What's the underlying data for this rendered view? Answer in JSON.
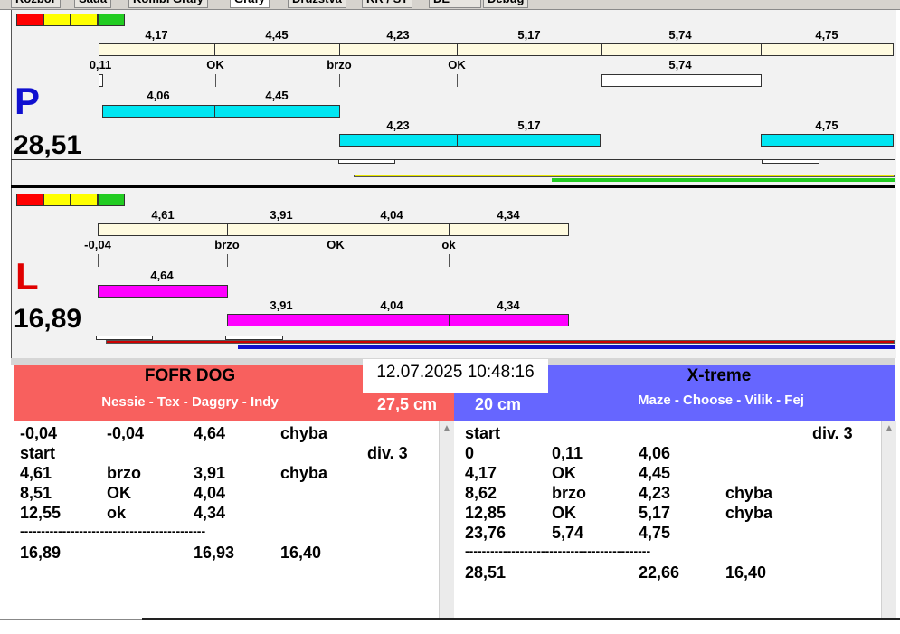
{
  "tabs": [
    {
      "label": "Rozbor"
    },
    {
      "label": "Sada"
    },
    {
      "label": "Kombi Grafy"
    },
    {
      "label": "Grafy"
    },
    {
      "label": "Družstva"
    },
    {
      "label": "KR / ST"
    },
    {
      "label": "DE"
    },
    {
      "label": "Debug"
    }
  ],
  "signal_colors": [
    "#ff0000",
    "#ffff00",
    "#ffff00",
    "#22cc22"
  ],
  "lane_p": {
    "letter": "P",
    "letter_color": "#1010d0",
    "total": "28,51",
    "ref_labels": [
      "4,17",
      "4,45",
      "4,23",
      "5,17",
      "5,74",
      "4,75"
    ],
    "pass_labels": [
      "0,11",
      "OK",
      "brzo",
      "OK",
      "5,74"
    ],
    "cyan_top_labels": [
      "4,06",
      "4,45"
    ],
    "cyan_bottom_labels": [
      "4,23",
      "5,17",
      "4,75"
    ]
  },
  "lane_l": {
    "letter": "L",
    "letter_color": "#e00000",
    "total": "16,89",
    "ref_labels": [
      "4,61",
      "3,91",
      "4,04",
      "4,34"
    ],
    "pass_labels": [
      "-0,04",
      "brzo",
      "OK",
      "ok"
    ],
    "mag_top_labels": [
      "4,64"
    ],
    "mag_bottom_labels": [
      "3,91",
      "4,04",
      "4,34"
    ]
  },
  "clock": "12.07.2025 10:48:16",
  "left_team": {
    "name": "FOFR DOG",
    "members": "Nessie - Tex - Daggry - Indy",
    "height": "27,5 cm",
    "color": "#f8605e",
    "rows": [
      [
        "-0,04",
        "-0,04",
        "4,64",
        "chyba",
        ""
      ],
      [
        "start",
        "",
        "",
        "",
        "div.  3"
      ],
      [
        "4,61",
        "brzo",
        "3,91",
        "chyba",
        ""
      ],
      [
        "8,51",
        "OK",
        "4,04",
        "",
        ""
      ],
      [
        "12,55",
        "ok",
        "4,34",
        "",
        ""
      ],
      [
        "--------------------------------------------",
        "",
        "",
        "",
        ""
      ],
      [
        "16,89",
        "",
        "16,93",
        "16,40",
        ""
      ]
    ]
  },
  "right_team": {
    "name": "X-treme",
    "members": "Maze - Choose - Vilik - Fej",
    "height": "20 cm",
    "color": "#6666ff",
    "rows": [
      [
        "start",
        "",
        "",
        "",
        "div.  3"
      ],
      [
        "0",
        "0,11",
        "4,06",
        "",
        ""
      ],
      [
        "4,17",
        "OK",
        "4,45",
        "",
        ""
      ],
      [
        "8,62",
        "brzo",
        "4,23",
        "chyba",
        ""
      ],
      [
        "12,85",
        "OK",
        "5,17",
        "chyba",
        ""
      ],
      [
        "23,76",
        "5,74",
        "4,75",
        "",
        ""
      ],
      [
        "--------------------------------------------",
        "",
        "",
        "",
        ""
      ],
      [
        "28,51",
        "",
        "22,66",
        "16,40",
        ""
      ]
    ]
  }
}
